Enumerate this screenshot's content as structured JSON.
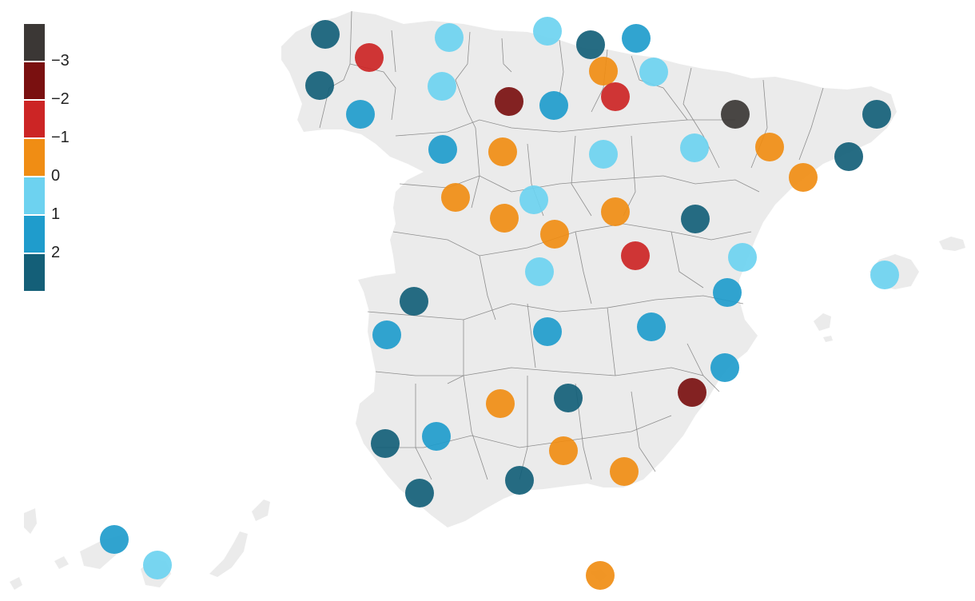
{
  "colors": {
    "land": "#ebebeb",
    "border": "#666666",
    "bins": [
      "#3b3735",
      "#7a1010",
      "#cc2525",
      "#f08d14",
      "#6dd2f0",
      "#1f9ccc",
      "#145f78"
    ]
  },
  "legend": {
    "labels": [
      "−3",
      "−2",
      "−1",
      "0",
      "1",
      "2"
    ]
  },
  "markers": [
    {
      "id": "a-coruna",
      "bin": 6
    },
    {
      "id": "lugo",
      "bin": 2
    },
    {
      "id": "pontevedra",
      "bin": 6
    },
    {
      "id": "ourense",
      "bin": 5
    },
    {
      "id": "asturias",
      "bin": 4
    },
    {
      "id": "cantabria",
      "bin": 4
    },
    {
      "id": "bizkaia",
      "bin": 6
    },
    {
      "id": "gipuzkoa",
      "bin": 5
    },
    {
      "id": "araba",
      "bin": 3
    },
    {
      "id": "navarra",
      "bin": 4
    },
    {
      "id": "leon",
      "bin": 4
    },
    {
      "id": "palencia",
      "bin": 1
    },
    {
      "id": "burgos",
      "bin": 5
    },
    {
      "id": "la-rioja",
      "bin": 2
    },
    {
      "id": "huesca",
      "bin": 0
    },
    {
      "id": "girona",
      "bin": 6
    },
    {
      "id": "zamora",
      "bin": 5
    },
    {
      "id": "valladolid",
      "bin": 3
    },
    {
      "id": "soria",
      "bin": 4
    },
    {
      "id": "zaragoza",
      "bin": 4
    },
    {
      "id": "lleida",
      "bin": 3
    },
    {
      "id": "barcelona",
      "bin": 6
    },
    {
      "id": "tarragona",
      "bin": 3
    },
    {
      "id": "salamanca",
      "bin": 3
    },
    {
      "id": "segovia",
      "bin": 4
    },
    {
      "id": "avila",
      "bin": 3
    },
    {
      "id": "guadalajara",
      "bin": 3
    },
    {
      "id": "teruel",
      "bin": 6
    },
    {
      "id": "madrid",
      "bin": 3
    },
    {
      "id": "cuenca",
      "bin": 2
    },
    {
      "id": "castellon",
      "bin": 4
    },
    {
      "id": "toledo",
      "bin": 4
    },
    {
      "id": "valencia",
      "bin": 5
    },
    {
      "id": "caceres",
      "bin": 6
    },
    {
      "id": "badajoz",
      "bin": 5
    },
    {
      "id": "ciudad-real",
      "bin": 5
    },
    {
      "id": "albacete",
      "bin": 5
    },
    {
      "id": "alicante",
      "bin": 5
    },
    {
      "id": "murcia",
      "bin": 1
    },
    {
      "id": "cordoba",
      "bin": 3
    },
    {
      "id": "jaen",
      "bin": 6
    },
    {
      "id": "sevilla",
      "bin": 5
    },
    {
      "id": "huelva",
      "bin": 6
    },
    {
      "id": "granada",
      "bin": 3
    },
    {
      "id": "almeria",
      "bin": 3
    },
    {
      "id": "cadiz",
      "bin": 6
    },
    {
      "id": "malaga",
      "bin": 6
    },
    {
      "id": "baleares",
      "bin": 4
    },
    {
      "id": "santa-cruz-de-tenerife",
      "bin": 5
    },
    {
      "id": "las-palmas",
      "bin": 4
    },
    {
      "id": "melilla",
      "bin": 3
    }
  ]
}
